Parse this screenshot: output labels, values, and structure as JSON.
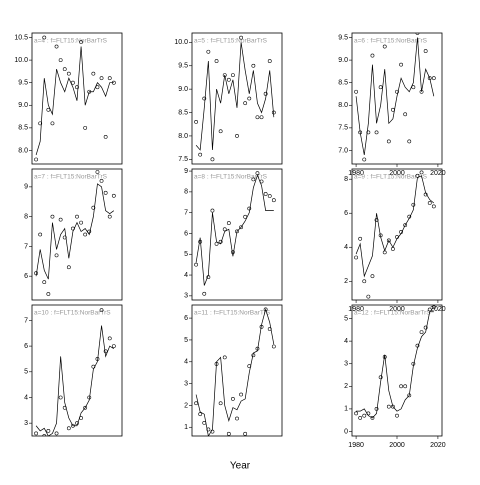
{
  "x_label": "Year",
  "chart_data": [
    {
      "type": "scatter",
      "title": "a=4 : f=FLT15:NorBarTrS",
      "x": [
        1980,
        1982,
        1984,
        1986,
        1988,
        1990,
        1992,
        1994,
        1996,
        1998,
        2000,
        2002,
        2004,
        2006,
        2008,
        2010,
        2012,
        2014,
        2016,
        2018
      ],
      "series": [
        {
          "style": "points",
          "values": [
            7.8,
            8.6,
            10.5,
            8.9,
            8.6,
            10.3,
            10.0,
            9.8,
            9.7,
            9.5,
            9.4,
            10.4,
            8.5,
            9.3,
            9.7,
            9.4,
            9.6,
            8.3,
            9.6,
            9.5
          ]
        },
        {
          "style": "line",
          "values": [
            7.9,
            8.2,
            9.6,
            9.0,
            8.8,
            9.8,
            9.5,
            9.3,
            9.6,
            9.4,
            9.1,
            10.3,
            9.0,
            9.3,
            9.3,
            9.5,
            9.4,
            9.2,
            9.5,
            9.5
          ]
        }
      ],
      "xlim": [
        1978,
        2022
      ],
      "ylim": [
        7.7,
        10.6
      ],
      "yticks": [
        {
          "value": 8,
          "label": "8.0"
        },
        {
          "value": 8.5,
          "label": "8.5"
        },
        {
          "value": 9,
          "label": "9.0"
        },
        {
          "value": 9.5,
          "label": "9.5"
        },
        {
          "value": 10,
          "label": "10.0"
        },
        {
          "value": 10.5,
          "label": "10.5"
        }
      ]
    },
    {
      "type": "scatter",
      "title": "a=7 : f=FLT15:NorBarTrS",
      "x": [
        1980,
        1982,
        1984,
        1986,
        1988,
        1990,
        1992,
        1994,
        1996,
        1998,
        2000,
        2002,
        2004,
        2006,
        2008,
        2010,
        2012,
        2014,
        2016,
        2018
      ],
      "series": [
        {
          "style": "points",
          "values": [
            6.1,
            7.4,
            5.8,
            5.4,
            8.0,
            6.7,
            7.9,
            7.3,
            6.3,
            7.6,
            8.0,
            7.8,
            7.4,
            7.5,
            8.3,
            9.5,
            9.2,
            8.8,
            8.0,
            8.7
          ]
        },
        {
          "style": "line",
          "values": [
            6.0,
            6.9,
            6.2,
            5.9,
            7.8,
            6.9,
            7.4,
            7.6,
            6.6,
            7.5,
            7.8,
            7.5,
            7.6,
            7.4,
            8.0,
            9.1,
            9.0,
            8.2,
            8.1,
            8.2
          ]
        }
      ],
      "xlim": [
        1978,
        2022
      ],
      "ylim": [
        5.2,
        9.6
      ],
      "yticks": [
        6,
        7,
        8,
        9
      ]
    },
    {
      "type": "scatter",
      "title": "a=10 : f=FLT15:NorBarTrS",
      "x": [
        1980,
        1982,
        1984,
        1986,
        1988,
        1990,
        1992,
        1994,
        1996,
        1998,
        2000,
        2002,
        2004,
        2006,
        2008,
        2010,
        2012,
        2014,
        2016,
        2018
      ],
      "series": [
        {
          "style": "points",
          "values": [
            2.6,
            2.4,
            2.5,
            2.7,
            2.4,
            2.6,
            4.0,
            3.6,
            2.8,
            2.9,
            3.0,
            3.2,
            3.6,
            4.0,
            5.2,
            5.5,
            7.4,
            5.8,
            6.3,
            6.0
          ]
        },
        {
          "style": "line",
          "values": [
            2.9,
            2.7,
            2.8,
            2.5,
            2.6,
            3.0,
            5.6,
            3.8,
            3.2,
            2.9,
            2.9,
            3.4,
            3.6,
            3.9,
            5.1,
            5.4,
            6.8,
            5.6,
            6.0,
            5.9
          ]
        }
      ],
      "xlim": [
        1978,
        2022
      ],
      "ylim": [
        2.5,
        7.6
      ],
      "yticks": [
        3,
        4,
        5,
        6,
        7
      ]
    },
    {
      "type": "scatter",
      "title": "a=5 : f=FLT15:NorBarTrS",
      "x": [
        1980,
        1982,
        1984,
        1986,
        1988,
        1990,
        1992,
        1994,
        1996,
        1998,
        2000,
        2002,
        2004,
        2006,
        2008,
        2010,
        2012,
        2014,
        2016,
        2018
      ],
      "series": [
        {
          "style": "points",
          "values": [
            8.3,
            7.6,
            8.8,
            9.8,
            7.5,
            9.6,
            8.1,
            9.3,
            9.2,
            9.3,
            8.0,
            10.1,
            8.7,
            8.8,
            9.5,
            8.4,
            8.4,
            8.9,
            9.6,
            8.5
          ]
        },
        {
          "style": "line",
          "values": [
            7.8,
            7.7,
            8.6,
            9.6,
            7.7,
            9.0,
            8.7,
            9.3,
            8.9,
            9.2,
            8.6,
            10.0,
            9.4,
            8.9,
            9.4,
            8.7,
            8.5,
            8.8,
            9.4,
            8.4
          ]
        }
      ],
      "xlim": [
        1978,
        2022
      ],
      "ylim": [
        7.4,
        10.2
      ],
      "yticks": [
        {
          "value": 7.5,
          "label": "7.5"
        },
        {
          "value": 8,
          "label": "8.0"
        },
        {
          "value": 8.5,
          "label": "8.5"
        },
        {
          "value": 9,
          "label": "9.0"
        },
        {
          "value": 9.5,
          "label": "9.5"
        },
        {
          "value": 10,
          "label": "10.0"
        }
      ]
    },
    {
      "type": "scatter",
      "title": "a=8 : f=FLT15:NorBarTrS",
      "x": [
        1980,
        1982,
        1984,
        1986,
        1988,
        1990,
        1992,
        1994,
        1996,
        1998,
        2000,
        2002,
        2004,
        2006,
        2008,
        2010,
        2012,
        2014,
        2016,
        2018
      ],
      "series": [
        {
          "style": "points",
          "values": [
            4.5,
            5.6,
            3.1,
            3.9,
            7.1,
            5.5,
            5.6,
            6.2,
            6.5,
            5.1,
            6.1,
            6.3,
            6.8,
            7.2,
            8.6,
            8.9,
            8.5,
            7.9,
            7.8,
            7.6
          ]
        },
        {
          "style": "line",
          "values": [
            4.6,
            5.8,
            3.5,
            4.0,
            7.0,
            5.6,
            5.5,
            6.1,
            6.2,
            4.9,
            6.1,
            6.3,
            6.6,
            7.0,
            8.2,
            8.8,
            8.3,
            7.1,
            7.1,
            7.1
          ]
        }
      ],
      "xlim": [
        1978,
        2022
      ],
      "ylim": [
        2.8,
        9.1
      ],
      "yticks": [
        3,
        4,
        5,
        6,
        7,
        8,
        9
      ]
    },
    {
      "type": "scatter",
      "title": "a=11 : f=FLT15:NorBarTrS",
      "x": [
        1980,
        1982,
        1984,
        1986,
        1988,
        1990,
        1992,
        1994,
        1996,
        1998,
        2000,
        2002,
        2004,
        2006,
        2008,
        2010,
        2012,
        2014,
        2016,
        2018
      ],
      "series": [
        {
          "style": "points",
          "values": [
            2.1,
            1.6,
            1.2,
            0.9,
            0.8,
            3.9,
            2.1,
            4.2,
            0.7,
            2.3,
            1.4,
            2.5,
            0.7,
            3.8,
            4.3,
            4.6,
            5.6,
            6.4,
            5.5,
            4.7
          ]
        },
        {
          "style": "line",
          "values": [
            2.5,
            1.7,
            1.6,
            0.6,
            0.9,
            4.0,
            4.2,
            2.0,
            1.3,
            1.9,
            1.8,
            2.2,
            2.3,
            3.5,
            4.4,
            4.5,
            5.7,
            6.4,
            5.8,
            4.8
          ]
        }
      ],
      "xlim": [
        1978,
        2022
      ],
      "ylim": [
        0.6,
        6.6
      ],
      "yticks": [
        1,
        2,
        3,
        4,
        5,
        6
      ]
    },
    {
      "type": "scatter",
      "title": "a=6 : f=FLT15:NorBarTrS",
      "x": [
        1980,
        1982,
        1984,
        1986,
        1988,
        1990,
        1992,
        1994,
        1996,
        1998,
        2000,
        2002,
        2004,
        2006,
        2008,
        2010,
        2012,
        2014,
        2016,
        2018
      ],
      "series": [
        {
          "style": "points",
          "values": [
            8.3,
            7.4,
            6.8,
            7.4,
            9.1,
            7.4,
            8.4,
            9.3,
            7.2,
            7.9,
            8.3,
            8.9,
            7.8,
            7.2,
            8.4,
            9.6,
            8.3,
            9.2,
            8.6,
            8.6
          ]
        },
        {
          "style": "line",
          "values": [
            8.2,
            7.4,
            6.9,
            7.6,
            8.9,
            7.6,
            8.0,
            8.8,
            7.6,
            7.7,
            8.2,
            8.6,
            8.4,
            8.3,
            8.5,
            9.5,
            8.3,
            8.8,
            8.6,
            8.2
          ]
        }
      ],
      "xlim": [
        1978,
        2022
      ],
      "ylim": [
        6.7,
        9.6
      ],
      "xticks": [
        1980,
        2000,
        2020
      ],
      "yticks": [
        {
          "value": 7,
          "label": "7.0"
        },
        {
          "value": 7.5,
          "label": "7.5"
        },
        {
          "value": 8,
          "label": "8.0"
        },
        {
          "value": 8.5,
          "label": "8.5"
        },
        {
          "value": 9,
          "label": "9.0"
        },
        {
          "value": 9.5,
          "label": "9.5"
        }
      ]
    },
    {
      "type": "scatter",
      "title": "a=9 : f=FLT15:NorBarTrS",
      "x": [
        1980,
        1982,
        1984,
        1986,
        1988,
        1990,
        1992,
        1994,
        1996,
        1998,
        2000,
        2002,
        2004,
        2006,
        2008,
        2010,
        2012,
        2014,
        2016,
        2018
      ],
      "series": [
        {
          "style": "points",
          "values": [
            3.4,
            4.5,
            2.0,
            1.1,
            2.3,
            5.6,
            4.7,
            3.7,
            4.4,
            3.9,
            4.6,
            4.9,
            5.3,
            5.8,
            6.5,
            8.2,
            8.4,
            7.1,
            6.6,
            6.4
          ]
        },
        {
          "style": "line",
          "values": [
            3.6,
            4.2,
            2.3,
            2.9,
            3.5,
            6.0,
            4.6,
            3.8,
            4.4,
            4.0,
            4.5,
            4.8,
            5.3,
            5.7,
            6.2,
            8.1,
            8.2,
            7.2,
            6.8,
            6.6
          ]
        }
      ],
      "xlim": [
        1978,
        2022
      ],
      "ylim": [
        0.9,
        8.6
      ],
      "xticks": [
        1980,
        2000,
        2020
      ],
      "yticks": [
        2,
        4,
        6,
        8
      ]
    },
    {
      "type": "scatter",
      "title": "a=12 : f=FLT15:NorBarTrS",
      "x": [
        1980,
        1982,
        1984,
        1986,
        1988,
        1990,
        1992,
        1994,
        1996,
        1998,
        2000,
        2002,
        2004,
        2006,
        2008,
        2010,
        2012,
        2014,
        2016,
        2018
      ],
      "series": [
        {
          "style": "points",
          "values": [
            0.8,
            0.6,
            0.7,
            0.8,
            0.6,
            1.0,
            2.4,
            3.3,
            1.1,
            1.1,
            0.7,
            2.0,
            2.0,
            1.6,
            3.0,
            3.8,
            4.4,
            4.6,
            5.4,
            5.5
          ]
        },
        {
          "style": "line",
          "values": [
            0.9,
            0.9,
            1.0,
            0.7,
            0.6,
            0.8,
            2.2,
            3.4,
            1.8,
            1.1,
            0.9,
            1.0,
            1.4,
            1.6,
            2.9,
            3.7,
            4.2,
            4.4,
            5.3,
            5.3
          ]
        }
      ],
      "xlim": [
        1978,
        2022
      ],
      "ylim": [
        -0.2,
        5.6
      ],
      "xticks": [
        1980,
        2000,
        2020
      ],
      "yticks": [
        0,
        1,
        2,
        3,
        4,
        5
      ]
    }
  ]
}
